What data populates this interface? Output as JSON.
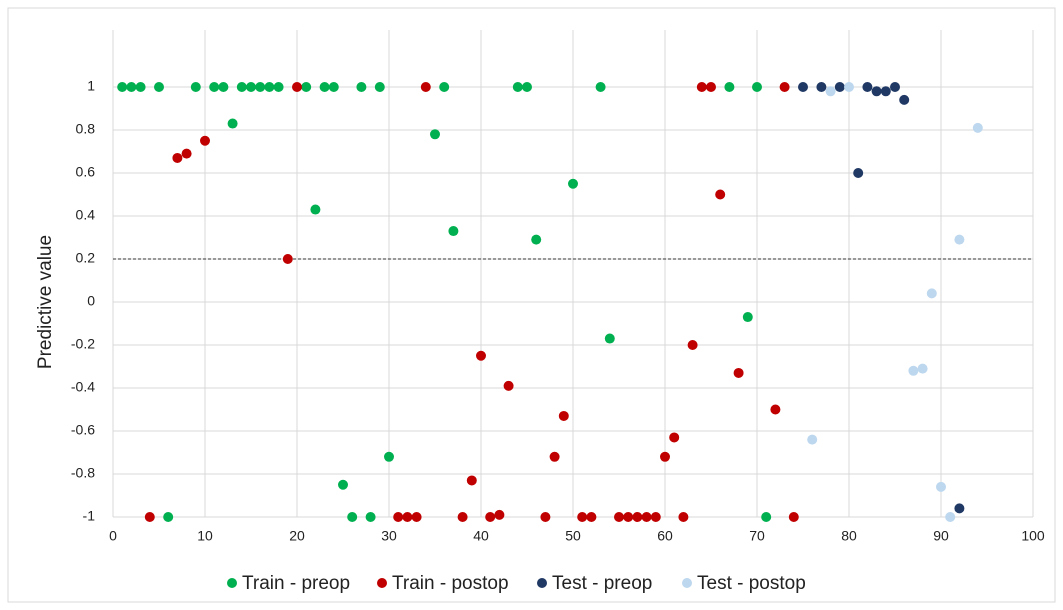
{
  "chart_data": {
    "type": "scatter",
    "ylabel": "Predictive value",
    "xlim": [
      0,
      100
    ],
    "xticks": [
      0,
      10,
      20,
      30,
      40,
      50,
      60,
      70,
      80,
      90,
      100
    ],
    "ylim": [
      -1,
      1
    ],
    "yticks": [
      -1,
      -0.8,
      -0.6,
      -0.4,
      -0.2,
      0,
      0.2,
      0.4,
      0.6,
      0.8,
      1
    ],
    "grid": true,
    "legend": "bottom",
    "threshold": 0.2,
    "series": [
      {
        "name": "Train - preop",
        "color": "#00b050",
        "x": [
          1,
          2,
          3,
          5,
          9,
          11,
          12,
          14,
          15,
          16,
          17,
          18,
          21,
          23,
          24,
          27,
          29,
          36,
          44,
          45,
          53,
          67,
          70,
          13,
          35,
          22,
          37,
          46,
          50,
          54,
          69,
          30,
          25,
          26,
          28,
          6,
          71
        ],
        "values": [
          1,
          1,
          1,
          1,
          1,
          1,
          1,
          1,
          1,
          1,
          1,
          1,
          1,
          1,
          1,
          1,
          1,
          1,
          1,
          1,
          1,
          1,
          1,
          0.83,
          0.78,
          0.43,
          0.33,
          0.29,
          0.55,
          -0.17,
          -0.07,
          -0.72,
          -0.85,
          -1,
          -1,
          -1,
          -1
        ]
      },
      {
        "name": "Train - postop",
        "color": "#c00000",
        "x": [
          4,
          7,
          8,
          10,
          19,
          20,
          34,
          31,
          32,
          33,
          38,
          39,
          40,
          41,
          42,
          43,
          47,
          48,
          49,
          51,
          52,
          55,
          56,
          57,
          58,
          59,
          60,
          61,
          62,
          63,
          64,
          65,
          66,
          68,
          72,
          73,
          74
        ],
        "values": [
          -1,
          0.67,
          0.69,
          0.75,
          0.2,
          1,
          1,
          -1,
          -1,
          -1,
          -1,
          -0.83,
          -0.25,
          -1,
          -0.99,
          -0.39,
          -1,
          -0.72,
          -0.53,
          -1,
          -1,
          -1,
          -1,
          -1,
          -1,
          -1,
          -0.72,
          -0.63,
          -1,
          -0.2,
          1,
          1,
          0.5,
          -0.33,
          -0.5,
          1,
          -1
        ]
      },
      {
        "name": "Test - preop",
        "color": "#1f3864",
        "x": [
          75,
          77,
          79,
          81,
          82,
          83,
          84,
          85,
          86,
          92
        ],
        "values": [
          1,
          1,
          1,
          0.6,
          1,
          0.98,
          0.98,
          1,
          0.94,
          -0.96
        ]
      },
      {
        "name": "Test - postop",
        "color": "#bdd7ee",
        "x": [
          76,
          78,
          80,
          87,
          88,
          89,
          90,
          91,
          92,
          94
        ],
        "values": [
          -0.64,
          0.98,
          1,
          -0.32,
          -0.31,
          0.04,
          -0.86,
          -1,
          0.29,
          0.81
        ]
      }
    ]
  }
}
